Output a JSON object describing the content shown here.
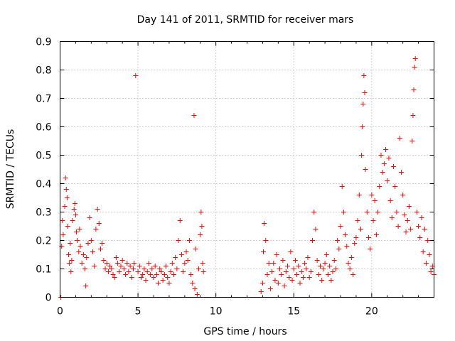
{
  "chart_data": {
    "type": "scatter",
    "title": "Day 141 of 2011, SRMTID for receiver mars",
    "xlabel": "GPS time / hours",
    "ylabel": "SRMTID / TECUs",
    "xlim": [
      0,
      24
    ],
    "ylim": [
      0,
      0.9
    ],
    "xticks": [
      0,
      5,
      10,
      15,
      20
    ],
    "yticks": [
      0,
      0.1,
      0.2,
      0.3,
      0.4,
      0.5,
      0.6,
      0.7,
      0.8,
      0.9
    ],
    "xtick_labels": [
      "0",
      "5",
      "10",
      "15",
      "20"
    ],
    "ytick_labels": [
      "0",
      "0.1",
      "0.2",
      "0.3",
      "0.4",
      "0.5",
      "0.6",
      "0.7",
      "0.8",
      "0.9"
    ],
    "grid": true,
    "marker": "plus",
    "color": "#ff0000",
    "series": [
      {
        "name": "SRMTID",
        "points": [
          [
            0.05,
            0.0
          ],
          [
            0.1,
            0.18
          ],
          [
            0.15,
            0.27
          ],
          [
            0.2,
            0.22
          ],
          [
            0.3,
            0.32
          ],
          [
            0.35,
            0.42
          ],
          [
            0.4,
            0.38
          ],
          [
            0.45,
            0.35
          ],
          [
            0.5,
            0.25
          ],
          [
            0.55,
            0.15
          ],
          [
            0.6,
            0.12
          ],
          [
            0.65,
            0.19
          ],
          [
            0.7,
            0.09
          ],
          [
            0.75,
            0.13
          ],
          [
            0.8,
            0.27
          ],
          [
            0.9,
            0.31
          ],
          [
            0.95,
            0.33
          ],
          [
            1.0,
            0.29
          ],
          [
            1.05,
            0.23
          ],
          [
            1.1,
            0.2
          ],
          [
            1.2,
            0.16
          ],
          [
            1.25,
            0.24
          ],
          [
            1.3,
            0.18
          ],
          [
            1.4,
            0.12
          ],
          [
            1.5,
            0.15
          ],
          [
            1.6,
            0.1
          ],
          [
            1.65,
            0.04
          ],
          [
            1.7,
            0.14
          ],
          [
            1.8,
            0.19
          ],
          [
            1.9,
            0.28
          ],
          [
            2.0,
            0.2
          ],
          [
            2.1,
            0.16
          ],
          [
            2.2,
            0.11
          ],
          [
            2.3,
            0.24
          ],
          [
            2.4,
            0.31
          ],
          [
            2.5,
            0.26
          ],
          [
            2.6,
            0.17
          ],
          [
            2.7,
            0.19
          ],
          [
            2.8,
            0.13
          ],
          [
            2.9,
            0.1
          ],
          [
            3.0,
            0.12
          ],
          [
            3.1,
            0.09
          ],
          [
            3.2,
            0.11
          ],
          [
            3.3,
            0.1
          ],
          [
            3.4,
            0.08
          ],
          [
            3.5,
            0.07
          ],
          [
            3.6,
            0.14
          ],
          [
            3.7,
            0.12
          ],
          [
            3.8,
            0.09
          ],
          [
            3.9,
            0.11
          ],
          [
            4.0,
            0.13
          ],
          [
            4.1,
            0.1
          ],
          [
            4.2,
            0.08
          ],
          [
            4.3,
            0.12
          ],
          [
            4.4,
            0.09
          ],
          [
            4.5,
            0.11
          ],
          [
            4.6,
            0.07
          ],
          [
            4.7,
            0.1
          ],
          [
            4.75,
            0.12
          ],
          [
            4.85,
            0.78
          ],
          [
            5.0,
            0.09
          ],
          [
            5.1,
            0.11
          ],
          [
            5.2,
            0.07
          ],
          [
            5.3,
            0.08
          ],
          [
            5.4,
            0.1
          ],
          [
            5.5,
            0.06
          ],
          [
            5.6,
            0.09
          ],
          [
            5.7,
            0.12
          ],
          [
            5.8,
            0.08
          ],
          [
            5.9,
            0.1
          ],
          [
            6.0,
            0.07
          ],
          [
            6.1,
            0.11
          ],
          [
            6.2,
            0.08
          ],
          [
            6.3,
            0.05
          ],
          [
            6.4,
            0.1
          ],
          [
            6.5,
            0.09
          ],
          [
            6.6,
            0.06
          ],
          [
            6.7,
            0.08
          ],
          [
            6.8,
            0.11
          ],
          [
            6.9,
            0.07
          ],
          [
            7.0,
            0.05
          ],
          [
            7.1,
            0.09
          ],
          [
            7.2,
            0.12
          ],
          [
            7.3,
            0.08
          ],
          [
            7.4,
            0.14
          ],
          [
            7.5,
            0.1
          ],
          [
            7.6,
            0.2
          ],
          [
            7.7,
            0.27
          ],
          [
            7.8,
            0.15
          ],
          [
            7.9,
            0.09
          ],
          [
            8.0,
            0.12
          ],
          [
            8.1,
            0.16
          ],
          [
            8.2,
            0.13
          ],
          [
            8.3,
            0.2
          ],
          [
            8.4,
            0.08
          ],
          [
            8.5,
            0.05
          ],
          [
            8.6,
            0.64
          ],
          [
            8.65,
            0.03
          ],
          [
            8.7,
            0.17
          ],
          [
            8.8,
            0.01
          ],
          [
            8.9,
            0.1
          ],
          [
            9.0,
            0.22
          ],
          [
            9.05,
            0.3
          ],
          [
            9.1,
            0.25
          ],
          [
            9.15,
            0.12
          ],
          [
            9.2,
            0.09
          ],
          [
            12.9,
            0.02
          ],
          [
            13.0,
            0.05
          ],
          [
            13.05,
            0.16
          ],
          [
            13.1,
            0.26
          ],
          [
            13.2,
            0.2
          ],
          [
            13.3,
            0.08
          ],
          [
            13.4,
            0.12
          ],
          [
            13.5,
            0.03
          ],
          [
            13.6,
            0.09
          ],
          [
            13.7,
            0.12
          ],
          [
            13.8,
            0.06
          ],
          [
            13.9,
            0.15
          ],
          [
            14.0,
            0.05
          ],
          [
            14.1,
            0.1
          ],
          [
            14.2,
            0.08
          ],
          [
            14.3,
            0.13
          ],
          [
            14.4,
            0.04
          ],
          [
            14.5,
            0.09
          ],
          [
            14.6,
            0.11
          ],
          [
            14.7,
            0.07
          ],
          [
            14.8,
            0.16
          ],
          [
            14.9,
            0.06
          ],
          [
            15.0,
            0.1
          ],
          [
            15.1,
            0.13
          ],
          [
            15.2,
            0.08
          ],
          [
            15.3,
            0.11
          ],
          [
            15.4,
            0.05
          ],
          [
            15.5,
            0.09
          ],
          [
            15.6,
            0.07
          ],
          [
            15.7,
            0.12
          ],
          [
            15.8,
            0.1
          ],
          [
            15.9,
            0.14
          ],
          [
            16.0,
            0.07
          ],
          [
            16.1,
            0.09
          ],
          [
            16.2,
            0.2
          ],
          [
            16.3,
            0.3
          ],
          [
            16.4,
            0.24
          ],
          [
            16.5,
            0.13
          ],
          [
            16.6,
            0.08
          ],
          [
            16.7,
            0.11
          ],
          [
            16.8,
            0.06
          ],
          [
            16.9,
            0.1
          ],
          [
            17.0,
            0.12
          ],
          [
            17.1,
            0.15
          ],
          [
            17.2,
            0.08
          ],
          [
            17.3,
            0.11
          ],
          [
            17.4,
            0.06
          ],
          [
            17.5,
            0.09
          ],
          [
            17.6,
            0.13
          ],
          [
            17.7,
            0.1
          ],
          [
            17.8,
            0.2
          ],
          [
            17.9,
            0.17
          ],
          [
            18.0,
            0.25
          ],
          [
            18.1,
            0.39
          ],
          [
            18.2,
            0.3
          ],
          [
            18.3,
            0.22
          ],
          [
            18.4,
            0.18
          ],
          [
            18.5,
            0.12
          ],
          [
            18.6,
            0.1
          ],
          [
            18.7,
            0.14
          ],
          [
            18.8,
            0.08
          ],
          [
            18.9,
            0.19
          ],
          [
            19.0,
            0.21
          ],
          [
            19.1,
            0.27
          ],
          [
            19.2,
            0.36
          ],
          [
            19.3,
            0.24
          ],
          [
            19.35,
            0.5
          ],
          [
            19.4,
            0.6
          ],
          [
            19.45,
            0.68
          ],
          [
            19.5,
            0.78
          ],
          [
            19.55,
            0.72
          ],
          [
            19.6,
            0.45
          ],
          [
            19.7,
            0.3
          ],
          [
            19.8,
            0.21
          ],
          [
            19.9,
            0.17
          ],
          [
            20.0,
            0.36
          ],
          [
            20.1,
            0.27
          ],
          [
            20.2,
            0.34
          ],
          [
            20.3,
            0.22
          ],
          [
            20.4,
            0.3
          ],
          [
            20.5,
            0.39
          ],
          [
            20.6,
            0.5
          ],
          [
            20.7,
            0.44
          ],
          [
            20.8,
            0.47
          ],
          [
            20.9,
            0.52
          ],
          [
            21.0,
            0.41
          ],
          [
            21.1,
            0.49
          ],
          [
            21.2,
            0.34
          ],
          [
            21.3,
            0.28
          ],
          [
            21.4,
            0.46
          ],
          [
            21.5,
            0.39
          ],
          [
            21.6,
            0.3
          ],
          [
            21.7,
            0.25
          ],
          [
            21.8,
            0.56
          ],
          [
            21.9,
            0.44
          ],
          [
            22.0,
            0.36
          ],
          [
            22.1,
            0.29
          ],
          [
            22.2,
            0.23
          ],
          [
            22.3,
            0.27
          ],
          [
            22.4,
            0.32
          ],
          [
            22.5,
            0.24
          ],
          [
            22.6,
            0.55
          ],
          [
            22.65,
            0.64
          ],
          [
            22.7,
            0.73
          ],
          [
            22.75,
            0.81
          ],
          [
            22.8,
            0.84
          ],
          [
            22.9,
            0.3
          ],
          [
            23.0,
            0.25
          ],
          [
            23.1,
            0.21
          ],
          [
            23.2,
            0.28
          ],
          [
            23.3,
            0.16
          ],
          [
            23.4,
            0.24
          ],
          [
            23.5,
            0.12
          ],
          [
            23.6,
            0.2
          ],
          [
            23.7,
            0.15
          ],
          [
            23.8,
            0.09
          ],
          [
            23.9,
            0.11
          ],
          [
            24.0,
            0.08
          ]
        ]
      }
    ]
  }
}
